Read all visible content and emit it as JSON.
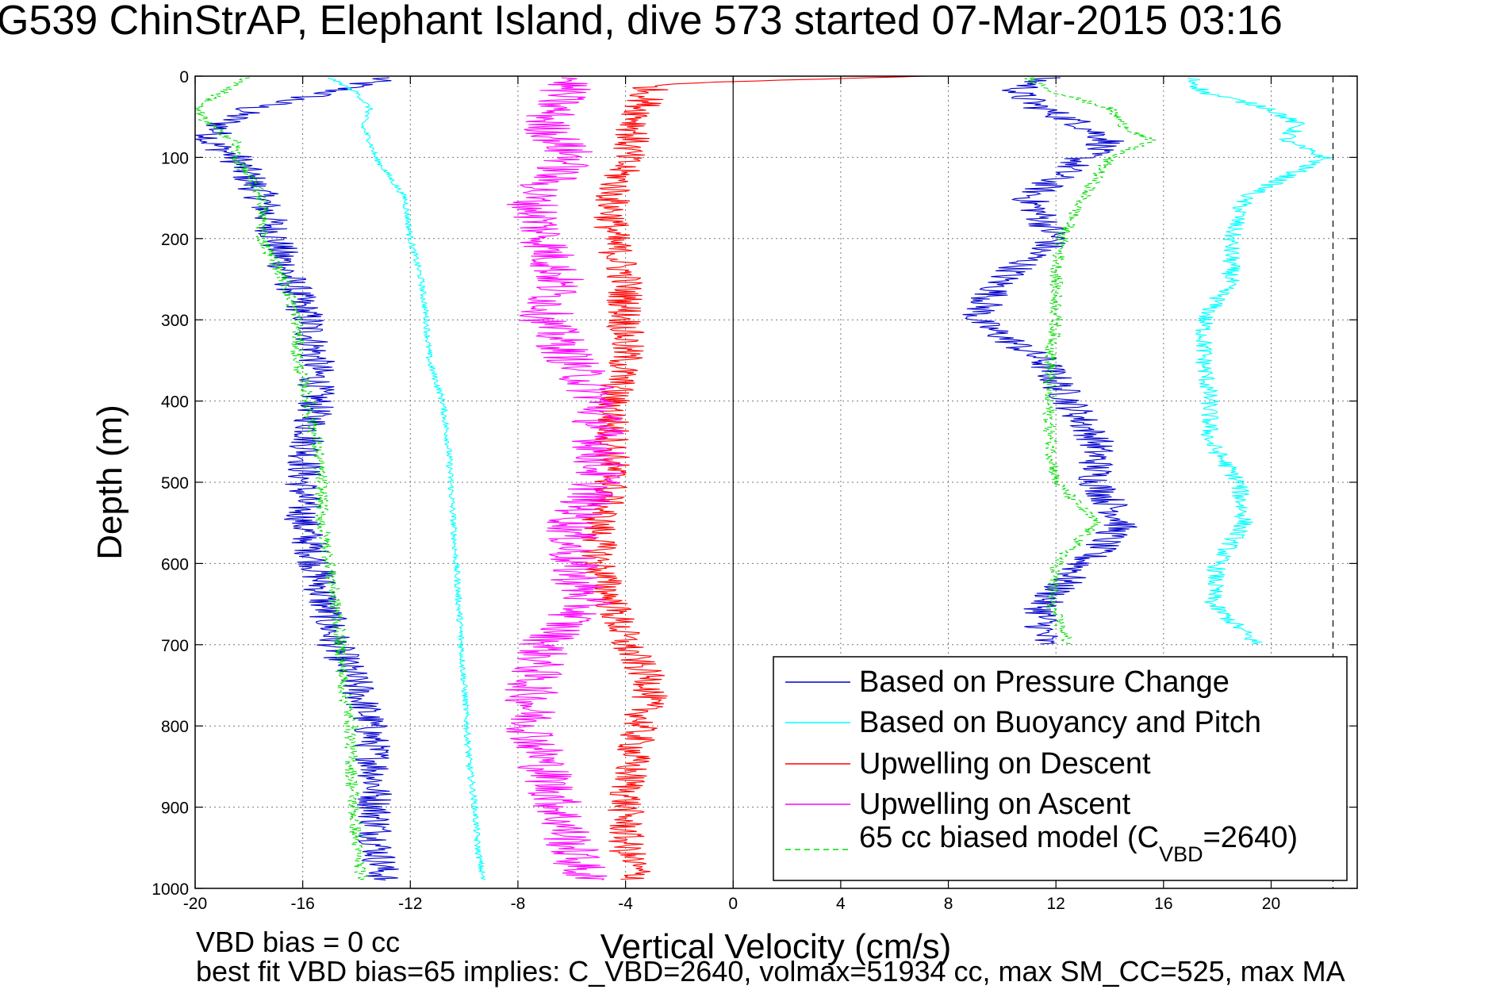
{
  "title": "G539 ChinStrAP, Elephant Island, dive 573 started 07-Mar-2015 03:16",
  "footer": {
    "bias_line": "VBD bias = 0 cc",
    "fit_line": "best fit VBD bias=65 implies: C_VBD=2640, volmax=51934 cc, max SM_CC=525, max MA"
  },
  "chart_data": {
    "type": "line",
    "xlabel": "Vertical Velocity (cm/s)",
    "ylabel": "Depth (m)",
    "xlim": [
      -20,
      23.2
    ],
    "ylim": [
      1000,
      0
    ],
    "y_reversed": true,
    "xticks": [
      -20,
      -16,
      -12,
      -8,
      -4,
      0,
      4,
      8,
      12,
      16,
      20
    ],
    "yticks": [
      0,
      100,
      200,
      300,
      400,
      500,
      600,
      700,
      800,
      900,
      1000
    ],
    "grid": true,
    "vertical_reference_lines": [
      {
        "x": 0,
        "style": "solid"
      },
      {
        "x": 22.3,
        "style": "dashed"
      }
    ],
    "legend_position": "bottom-right",
    "legend": [
      {
        "label": "Based on Pressure Change",
        "color": "#0000cc",
        "style": "solid"
      },
      {
        "label": "Based on Buoyancy and Pitch",
        "color": "#00ffff",
        "style": "solid"
      },
      {
        "label": "Upwelling on Descent",
        "color": "#ff0000",
        "style": "solid"
      },
      {
        "label": "Upwelling on Ascent",
        "color": "#ff00ff",
        "style": "solid"
      },
      {
        "label_main": "65 cc biased model (C",
        "label_sub": "VBD",
        "label_tail": "=2640)",
        "color": "#00dd00",
        "style": "dashed"
      }
    ],
    "series": [
      {
        "key": "pressure_descent",
        "color": "#0000cc",
        "style": "solid",
        "noise": 0.7,
        "depth": [
          2,
          20,
          40,
          60,
          80,
          100,
          150,
          200,
          250,
          300,
          350,
          400,
          450,
          500,
          550,
          600,
          650,
          700,
          750,
          800,
          850,
          900,
          950,
          990
        ],
        "values": [
          -13,
          -15,
          -18,
          -19,
          -19.5,
          -18.5,
          -17.5,
          -17,
          -16.5,
          -15.8,
          -15.5,
          -15.5,
          -15.8,
          -16,
          -16,
          -15.5,
          -15.2,
          -14.8,
          -14,
          -13.5,
          -13.3,
          -13.3,
          -13.2,
          -13
        ]
      },
      {
        "key": "pressure_ascent",
        "color": "#0000cc",
        "style": "solid",
        "noise": 0.7,
        "depth": [
          2,
          20,
          40,
          60,
          80,
          100,
          150,
          200,
          250,
          300,
          350,
          400,
          450,
          500,
          550,
          600,
          650,
          700
        ],
        "values": [
          11.5,
          10.5,
          11.5,
          13,
          14,
          13,
          11,
          12,
          10,
          9,
          11.5,
          12.5,
          13.5,
          13.5,
          14.5,
          13,
          11.5,
          11.5
        ]
      },
      {
        "key": "buoyancy_descent",
        "color": "#00ffff",
        "style": "solid",
        "noise": 0.12,
        "depth": [
          2,
          20,
          40,
          60,
          80,
          100,
          150,
          200,
          250,
          300,
          350,
          400,
          450,
          500,
          550,
          600,
          650,
          700,
          750,
          800,
          850,
          900,
          950,
          990
        ],
        "values": [
          -15,
          -14,
          -13.5,
          -13.8,
          -13.5,
          -13.3,
          -12.2,
          -12,
          -11.6,
          -11.4,
          -11.3,
          -10.8,
          -10.6,
          -10.5,
          -10.4,
          -10.3,
          -10.2,
          -10.1,
          -10,
          -9.9,
          -9.8,
          -9.6,
          -9.5,
          -9.3
        ]
      },
      {
        "key": "buoyancy_ascent",
        "color": "#00ffff",
        "style": "solid",
        "noise": 0.35,
        "depth": [
          2,
          20,
          40,
          60,
          80,
          100,
          150,
          200,
          250,
          300,
          350,
          400,
          450,
          500,
          550,
          600,
          650,
          700
        ],
        "values": [
          17,
          17.5,
          20,
          21,
          20.5,
          22,
          19,
          18.5,
          18.5,
          17.5,
          17.5,
          17.7,
          17.7,
          18.8,
          19,
          18,
          17.8,
          19.5
        ]
      },
      {
        "key": "upwelling_descent",
        "color": "#ff0000",
        "style": "solid",
        "noise": 0.7,
        "depth": [
          0,
          10,
          50,
          100,
          150,
          200,
          250,
          300,
          350,
          400,
          450,
          500,
          550,
          600,
          650,
          700,
          750,
          800,
          850,
          900,
          950,
          990
        ],
        "values": [
          7,
          -3,
          -3.5,
          -4,
          -4.5,
          -4.5,
          -4,
          -4,
          -4,
          -4.5,
          -4.5,
          -4.5,
          -5,
          -5,
          -4.5,
          -4,
          -3,
          -3.5,
          -3.8,
          -4,
          -4,
          -3.5
        ]
      },
      {
        "key": "upwelling_ascent",
        "color": "#ff00ff",
        "style": "solid",
        "noise": 1.0,
        "depth": [
          2,
          30,
          60,
          100,
          150,
          200,
          250,
          300,
          350,
          400,
          450,
          500,
          550,
          600,
          650,
          700,
          750,
          800,
          850,
          900,
          950,
          990
        ],
        "values": [
          -6,
          -6.5,
          -7,
          -6,
          -7.5,
          -7,
          -6.5,
          -7,
          -6,
          -5,
          -5,
          -5,
          -6,
          -6,
          -5.5,
          -7,
          -7.5,
          -7.5,
          -7,
          -6.5,
          -6,
          -5.5
        ]
      },
      {
        "key": "model_descent",
        "color": "#00dd00",
        "style": "dashed",
        "noise": 0.25,
        "depth": [
          2,
          20,
          40,
          60,
          80,
          100,
          150,
          200,
          250,
          300,
          350,
          400,
          450,
          500,
          550,
          600,
          650,
          700,
          750,
          800,
          850,
          900,
          950,
          990
        ],
        "values": [
          -18,
          -19,
          -20,
          -19.5,
          -18.5,
          -18.5,
          -17.5,
          -17.5,
          -16.7,
          -16.2,
          -16.2,
          -15.8,
          -15.5,
          -15.3,
          -15.3,
          -15,
          -14.8,
          -14.6,
          -14.5,
          -14.2,
          -14.2,
          -14.1,
          -14,
          -13.8
        ]
      },
      {
        "key": "model_ascent",
        "color": "#00dd00",
        "style": "dashed",
        "noise": 0.25,
        "depth": [
          2,
          20,
          40,
          60,
          80,
          100,
          150,
          200,
          250,
          300,
          350,
          400,
          450,
          500,
          550,
          600,
          650,
          700
        ],
        "values": [
          11,
          12,
          14,
          14.5,
          15.5,
          14,
          13,
          12.2,
          12,
          12,
          11.8,
          11.7,
          11.8,
          12,
          13.5,
          12,
          11.8,
          12.5
        ]
      }
    ]
  }
}
